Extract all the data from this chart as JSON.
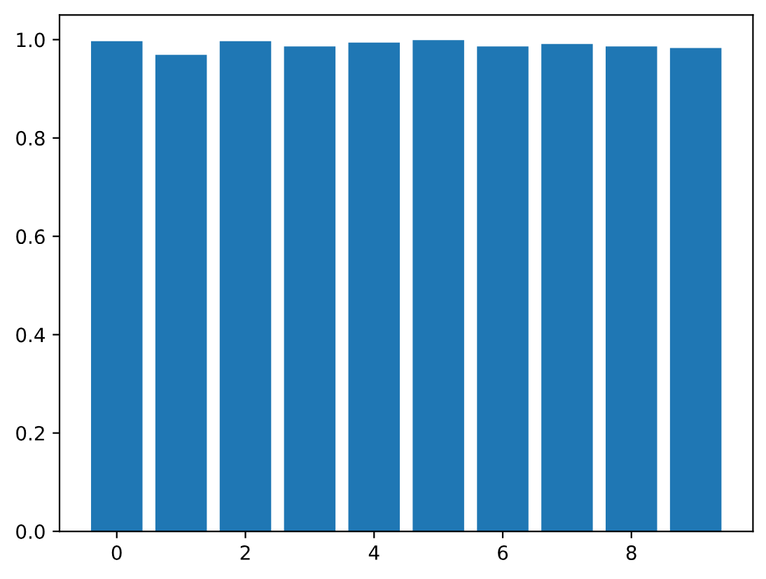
{
  "chart_data": {
    "type": "bar",
    "x": [
      0,
      1,
      2,
      3,
      4,
      5,
      6,
      7,
      8,
      9
    ],
    "values": [
      0.997,
      0.969,
      0.997,
      0.986,
      0.994,
      0.999,
      0.986,
      0.991,
      0.986,
      0.983
    ],
    "color": "#1f77b4",
    "xlim": [
      -0.89,
      9.89
    ],
    "xticks": [
      0,
      2,
      4,
      6,
      8
    ],
    "ylim": [
      0,
      1.05
    ],
    "yticks": [
      {
        "value": 0,
        "label": "0.0"
      },
      {
        "value": 0.2,
        "label": "0.2"
      },
      {
        "value": 0.4,
        "label": "0.4"
      },
      {
        "value": 0.6,
        "label": "0.6"
      },
      {
        "value": 0.8,
        "label": "0.8"
      },
      {
        "value": 1.0,
        "label": "1.0"
      }
    ],
    "grid": false,
    "legend": false
  }
}
